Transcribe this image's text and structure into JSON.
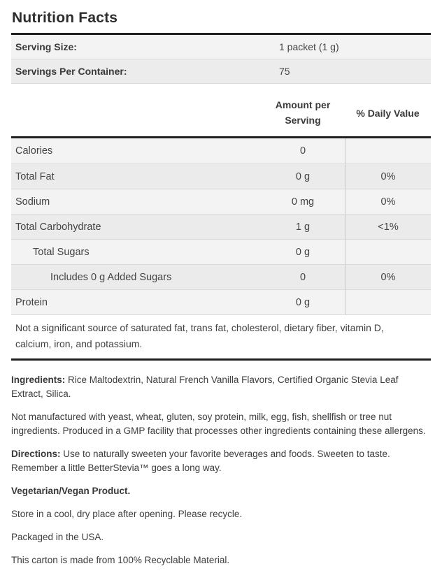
{
  "title": "Nutrition Facts",
  "colors": {
    "rule": "#1f1f1f",
    "row_stripe_light": "#f3f3f3",
    "row_stripe_dark": "#ebebeb",
    "text": "#3f3f3f"
  },
  "serving_info": {
    "rows": [
      {
        "label": "Serving Size:",
        "value": "1 packet (1 g)"
      },
      {
        "label": "Servings Per Container:",
        "value": "75"
      }
    ]
  },
  "nutrition_table": {
    "amount_header": "Amount per Serving",
    "dv_header": "% Daily Value",
    "rows": [
      {
        "label": "Calories",
        "amount": "0",
        "dv": ""
      },
      {
        "label": "Total Fat",
        "amount": "0 g",
        "dv": "0%"
      },
      {
        "label": "Sodium",
        "amount": "0 mg",
        "dv": "0%"
      },
      {
        "label": "Total Carbohydrate",
        "amount": "1 g",
        "dv": "<1%"
      },
      {
        "label": "Total Sugars",
        "amount": "0 g",
        "dv": ""
      },
      {
        "label": "Includes 0 g Added Sugars",
        "amount": "0",
        "dv": "0%"
      },
      {
        "label": "Protein",
        "amount": "0 g",
        "dv": ""
      }
    ],
    "footnote": "Not a significant source of saturated fat, trans fat, cholesterol, dietary fiber, vitamin D, calcium, iron, and potassium."
  },
  "paragraphs": [
    {
      "bold": "Ingredients:",
      "text": " Rice Maltodextrin, Natural French Vanilla Flavors, Certified Organic Stevia Leaf Extract, Silica."
    },
    {
      "bold": "",
      "text": "Not manufactured with yeast, wheat, gluten, soy protein, milk, egg, fish, shellfish or tree nut ingredients. Produced in a GMP facility that processes other ingredients containing these allergens."
    },
    {
      "bold": "Directions:",
      "text": " Use to naturally sweeten your favorite beverages and foods. Sweeten to taste. Remember a little BetterStevia™ goes a long way."
    },
    {
      "bold": "Vegetarian/Vegan Product.",
      "text": ""
    },
    {
      "bold": "",
      "text": "Store in a cool, dry place after opening. Please recycle."
    },
    {
      "bold": "",
      "text": "Packaged in the USA."
    },
    {
      "bold": "",
      "text": "This carton is made from 100% Recyclable Material."
    }
  ]
}
